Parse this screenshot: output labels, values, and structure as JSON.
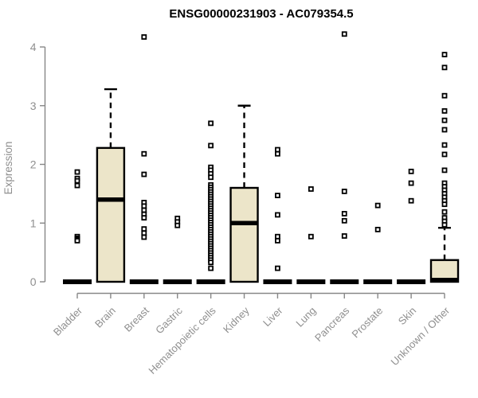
{
  "title": "ENSG00000231903 - AC079354.5",
  "chart_data": {
    "type": "boxplot",
    "title": "ENSG00000231903 - AC079354.5",
    "ylabel": "Expression",
    "xlabel": "",
    "ylim": [
      0,
      4
    ],
    "yticks": [
      0,
      1,
      2,
      3,
      4
    ],
    "grid": false,
    "legend": "none",
    "categories": [
      "Bladder",
      "Brain",
      "Breast",
      "Gastric",
      "Hematopoietic cells",
      "Kidney",
      "Liver",
      "Lung",
      "Pancreas",
      "Prostate",
      "Skin",
      "Unknown / Other"
    ],
    "series": [
      {
        "category": "Bladder",
        "collapsed": true,
        "q1": 0,
        "median": 0,
        "q3": 0,
        "whisker_high": 0,
        "outliers": [
          1.87,
          1.76,
          1.72,
          1.64,
          0.77,
          0.74,
          0.72,
          0.7
        ]
      },
      {
        "category": "Brain",
        "collapsed": false,
        "q1": 0,
        "median": 1.4,
        "q3": 2.28,
        "whisker_high": 3.28,
        "outliers": []
      },
      {
        "category": "Breast",
        "collapsed": true,
        "q1": 0,
        "median": 0,
        "q3": 0,
        "whisker_high": 0,
        "outliers": [
          4.17,
          2.18,
          1.83,
          1.35,
          1.29,
          1.22,
          1.15,
          1.09,
          0.9,
          0.83,
          0.76
        ]
      },
      {
        "category": "Gastric",
        "collapsed": true,
        "q1": 0,
        "median": 0,
        "q3": 0,
        "whisker_high": 0,
        "outliers": [
          1.08,
          1.02,
          0.96
        ]
      },
      {
        "category": "Hematopoietic cells",
        "collapsed": true,
        "q1": 0,
        "median": 0,
        "q3": 0,
        "whisker_high": 0,
        "outliers": [
          2.7,
          2.32,
          1.95,
          1.9,
          1.84,
          1.78,
          1.65,
          1.61,
          1.57,
          1.53,
          1.49,
          1.45,
          1.41,
          1.37,
          1.33,
          1.29,
          1.25,
          1.21,
          1.17,
          1.13,
          1.09,
          1.05,
          1.01,
          0.97,
          0.93,
          0.89,
          0.85,
          0.81,
          0.77,
          0.73,
          0.69,
          0.65,
          0.61,
          0.57,
          0.53,
          0.49,
          0.45,
          0.41,
          0.37,
          0.33,
          0.23
        ]
      },
      {
        "category": "Kidney",
        "collapsed": false,
        "q1": 0,
        "median": 1.0,
        "q3": 1.6,
        "whisker_high": 3.0,
        "outliers": []
      },
      {
        "category": "Liver",
        "collapsed": true,
        "q1": 0,
        "median": 0,
        "q3": 0,
        "whisker_high": 0,
        "outliers": [
          2.25,
          2.18,
          1.47,
          1.14,
          0.77,
          0.7,
          0.23
        ]
      },
      {
        "category": "Lung",
        "collapsed": true,
        "q1": 0,
        "median": 0,
        "q3": 0,
        "whisker_high": 0,
        "outliers": [
          1.58,
          0.77
        ]
      },
      {
        "category": "Pancreas",
        "collapsed": true,
        "q1": 0,
        "median": 0,
        "q3": 0,
        "whisker_high": 0,
        "outliers": [
          4.22,
          1.54,
          1.16,
          1.04,
          0.78
        ]
      },
      {
        "category": "Prostate",
        "collapsed": true,
        "q1": 0,
        "median": 0,
        "q3": 0,
        "whisker_high": 0,
        "outliers": [
          1.3,
          0.89
        ]
      },
      {
        "category": "Skin",
        "collapsed": true,
        "q1": 0,
        "median": 0,
        "q3": 0,
        "whisker_high": 0,
        "outliers": [
          1.88,
          1.68,
          1.38
        ]
      },
      {
        "category": "Unknown / Other",
        "collapsed": false,
        "q1": 0,
        "median": 0.03,
        "q3": 0.37,
        "whisker_high": 0.92,
        "outliers": [
          3.87,
          3.65,
          3.17,
          2.91,
          2.75,
          2.59,
          2.33,
          2.17,
          1.9,
          1.68,
          1.62,
          1.56,
          1.5,
          1.44,
          1.38,
          1.32,
          1.19,
          1.09,
          1.03,
          0.97
        ]
      }
    ],
    "colors": {
      "box_fill": "#ece5c9",
      "box_stroke": "#000000",
      "median": "#000000",
      "whisker": "#000000",
      "outlier_stroke": "#000000",
      "outlier_fill": "#ffffff",
      "axis": "#878787",
      "axis_text": "#8f8f8f",
      "title_text": "#000000",
      "background": "#ffffff"
    }
  }
}
